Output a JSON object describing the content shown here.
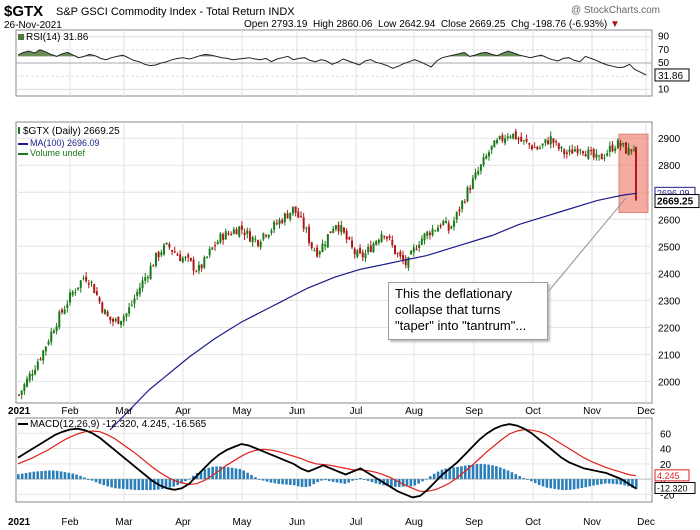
{
  "header": {
    "symbol": "$GTX",
    "name": "S&P GSCI Commodity Index - Total Return  INDX",
    "date": "26-Nov-2021",
    "open_label": "Open",
    "open": "2793.19",
    "high_label": "High",
    "high": "2860.06",
    "low_label": "Low",
    "low": "2642.94",
    "close_label": "Close",
    "close": "2669.25",
    "chg_label": "Chg",
    "chg": "-198.76 (-6.93%)",
    "watermark": "@ StockCharts.com"
  },
  "colors": {
    "up": "#1a7a1a",
    "down": "#b01818",
    "ma": "#1c1c8c",
    "rsi_fill": "#4f7a3a",
    "macd": "#000000",
    "signal": "#e0201a",
    "hist": "#2a7fb8",
    "highlight": "#f08878"
  },
  "callout": {
    "text": "This the deflationary collapse that turns \"taper\" into \"tantrum\"..."
  },
  "chart_data": [
    {
      "type": "line",
      "panel": "RSI",
      "label": "RSI(14) 31.86",
      "last_value_label": "31.86",
      "ylim": [
        0,
        100
      ],
      "y_ticks": [
        10,
        30,
        50,
        70,
        90
      ],
      "series": [
        {
          "name": "RSI(14)",
          "values": [
            62,
            66,
            68,
            65,
            70,
            67,
            63,
            60,
            64,
            66,
            62,
            58,
            60,
            63,
            61,
            57,
            55,
            58,
            60,
            62,
            58,
            54,
            52,
            48,
            46,
            47,
            50,
            52,
            55,
            57,
            58,
            56,
            58,
            61,
            63,
            62,
            60,
            58,
            57,
            55,
            56,
            57,
            58,
            56,
            55,
            57,
            52,
            56,
            58,
            60,
            55,
            57,
            58,
            54,
            52,
            55,
            53,
            48,
            51,
            56,
            53,
            50,
            47,
            53,
            55,
            51,
            49,
            46,
            42,
            45,
            49,
            52,
            55,
            52,
            48,
            44,
            53,
            58,
            60,
            62,
            64,
            66,
            60,
            62,
            65,
            66,
            63,
            61,
            65,
            68,
            65,
            62,
            60,
            58,
            60,
            62,
            58,
            55,
            53,
            57,
            58,
            54,
            52,
            60,
            57,
            54,
            50,
            47,
            45,
            43,
            44,
            48,
            40,
            36,
            31.86
          ]
        }
      ]
    },
    {
      "type": "candlestick",
      "panel": "price",
      "title_label": "$GTX (Daily) 2669.25",
      "legend": [
        {
          "name": "MA(100) 2696.09"
        },
        {
          "name": "Volume undef"
        }
      ],
      "ylim": [
        1920,
        2960
      ],
      "y_ticks": [
        2000,
        2100,
        2200,
        2300,
        2400,
        2500,
        2600,
        2700,
        2800,
        2900
      ],
      "price_labels": [
        "2696.09",
        "2669.25"
      ],
      "x_labels": [
        "2021",
        "Feb",
        "Mar",
        "Apr",
        "May",
        "Jun",
        "Jul",
        "Aug",
        "Sep",
        "Oct",
        "Nov",
        "Dec"
      ],
      "close_series": [
        1950,
        1990,
        2030,
        2070,
        2110,
        2160,
        2210,
        2250,
        2290,
        2330,
        2360,
        2390,
        2370,
        2320,
        2270,
        2230,
        2220,
        2235,
        2250,
        2290,
        2340,
        2380,
        2420,
        2460,
        2490,
        2500,
        2480,
        2460,
        2450,
        2430,
        2410,
        2440,
        2480,
        2510,
        2540,
        2545,
        2560,
        2570,
        2550,
        2530,
        2520,
        2550,
        2560,
        2580,
        2600,
        2620,
        2640,
        2600,
        2560,
        2500,
        2480,
        2510,
        2550,
        2590,
        2560,
        2520,
        2480,
        2460,
        2470,
        2500,
        2530,
        2560,
        2520,
        2480,
        2450,
        2430,
        2480,
        2520,
        2540,
        2560,
        2570,
        2590,
        2560,
        2600,
        2650,
        2700,
        2740,
        2780,
        2820,
        2860,
        2880,
        2900,
        2920,
        2910,
        2890,
        2880,
        2870,
        2860,
        2880,
        2900,
        2870,
        2850,
        2840,
        2860,
        2870,
        2850,
        2830,
        2820,
        2840,
        2860,
        2880,
        2870,
        2850,
        2868,
        2669.25
      ],
      "ma100_series": [
        1820,
        1870,
        1920,
        1970,
        2010,
        2050,
        2090,
        2125,
        2160,
        2190,
        2220,
        2245,
        2270,
        2295,
        2320,
        2345,
        2365,
        2385,
        2400,
        2415,
        2425,
        2435,
        2445,
        2455,
        2465,
        2480,
        2495,
        2510,
        2525,
        2540,
        2560,
        2580,
        2595,
        2610,
        2625,
        2640,
        2655,
        2670,
        2680,
        2690,
        2696.09
      ]
    },
    {
      "type": "line",
      "panel": "MACD",
      "label": "MACD(12,26,9) -12.320, 4.245, -16.565",
      "ylim": [
        -30,
        80
      ],
      "y_ticks": [
        -20,
        0,
        20,
        40,
        60
      ],
      "value_labels": [
        "4.245",
        "-12.320"
      ],
      "x_labels": [
        "2021",
        "Feb",
        "Mar",
        "Apr",
        "May",
        "Jun",
        "Jul",
        "Aug",
        "Sep",
        "Oct",
        "Nov",
        "Dec"
      ],
      "series": [
        {
          "name": "MACD",
          "values": [
            28,
            34,
            40,
            46,
            52,
            58,
            62,
            65,
            66,
            64,
            60,
            54,
            46,
            38,
            30,
            22,
            14,
            6,
            -2,
            -8,
            -12,
            -14,
            -12,
            -6,
            4,
            14,
            24,
            32,
            38,
            42,
            46,
            44,
            40,
            36,
            32,
            28,
            24,
            20,
            14,
            10,
            14,
            18,
            14,
            10,
            6,
            10,
            14,
            8,
            2,
            -4,
            -10,
            -16,
            -20,
            -24,
            -22,
            -14,
            -4,
            6,
            14,
            22,
            32,
            42,
            52,
            60,
            66,
            70,
            72,
            70,
            66,
            60,
            52,
            44,
            36,
            28,
            22,
            18,
            14,
            12,
            10,
            8,
            4,
            0,
            -6,
            -12.32
          ]
        },
        {
          "name": "Signal",
          "values": [
            20,
            24,
            28,
            33,
            38,
            44,
            50,
            55,
            59,
            62,
            63,
            62,
            58,
            53,
            46,
            39,
            32,
            24,
            16,
            9,
            3,
            -2,
            -5,
            -7,
            -6,
            -2,
            4,
            11,
            18,
            24,
            30,
            35,
            38,
            39,
            38,
            36,
            33,
            30,
            27,
            23,
            20,
            19,
            18,
            16,
            14,
            12,
            12,
            11,
            9,
            6,
            2,
            -3,
            -8,
            -12,
            -16,
            -16,
            -14,
            -10,
            -5,
            2,
            10,
            18,
            27,
            36,
            44,
            52,
            59,
            63,
            65,
            64,
            62,
            58,
            52,
            46,
            40,
            34,
            28,
            23,
            19,
            15,
            12,
            9,
            6,
            4.245
          ]
        }
      ]
    }
  ]
}
